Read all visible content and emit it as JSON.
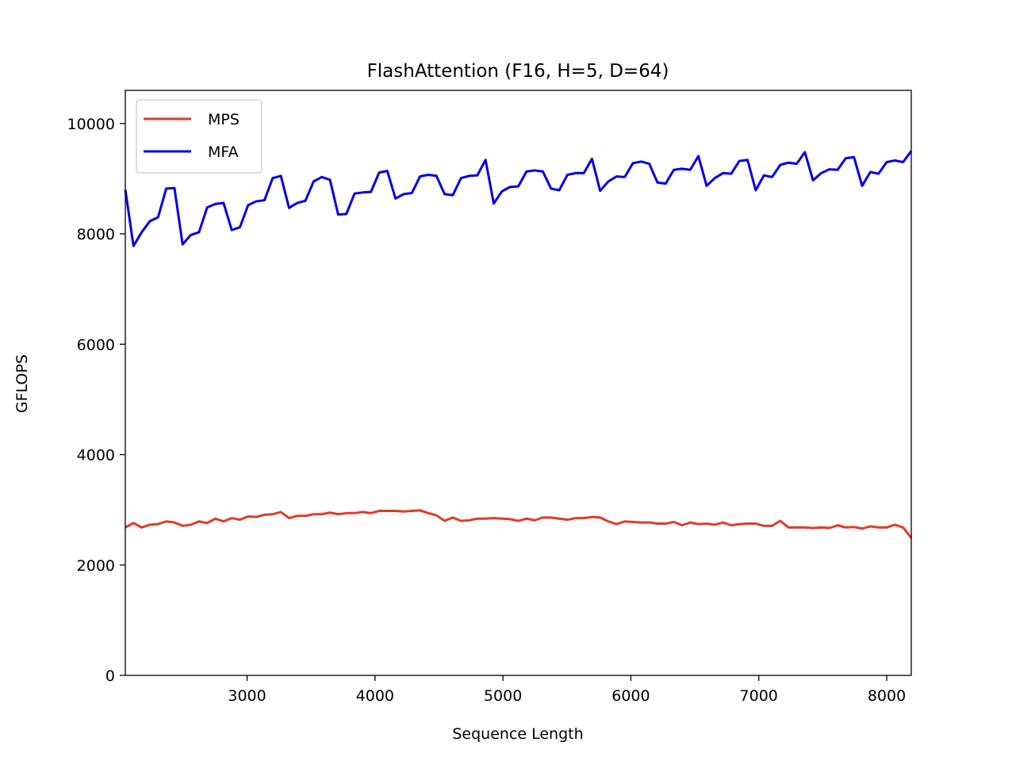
{
  "chart_data": {
    "type": "line",
    "title": "FlashAttention (F16, H=5, D=64)",
    "xlabel": "Sequence Length",
    "ylabel": "GFLOPS",
    "xlim": [
      2048,
      8192
    ],
    "ylim": [
      0,
      10600
    ],
    "x_ticks": [
      3000,
      4000,
      5000,
      6000,
      7000,
      8000
    ],
    "x_tick_labels": [
      "3000",
      "4000",
      "5000",
      "6000",
      "7000",
      "8000"
    ],
    "y_ticks": [
      0,
      2000,
      4000,
      6000,
      8000,
      10000
    ],
    "y_tick_labels": [
      "0",
      "2000",
      "4000",
      "6000",
      "8000",
      "10000"
    ],
    "grid": false,
    "legend_position": "top-left",
    "x": [
      2048,
      2112,
      2176,
      2240,
      2304,
      2368,
      2432,
      2496,
      2560,
      2624,
      2688,
      2752,
      2816,
      2880,
      2944,
      3008,
      3072,
      3136,
      3200,
      3264,
      3328,
      3392,
      3456,
      3520,
      3584,
      3648,
      3712,
      3776,
      3840,
      3904,
      3968,
      4032,
      4096,
      4160,
      4224,
      4288,
      4352,
      4416,
      4480,
      4544,
      4608,
      4672,
      4736,
      4800,
      4864,
      4928,
      4992,
      5056,
      5120,
      5184,
      5248,
      5312,
      5376,
      5440,
      5504,
      5568,
      5632,
      5696,
      5760,
      5824,
      5888,
      5952,
      6016,
      6080,
      6144,
      6208,
      6272,
      6336,
      6400,
      6464,
      6528,
      6592,
      6656,
      6720,
      6784,
      6848,
      6912,
      6976,
      7040,
      7104,
      7168,
      7232,
      7296,
      7360,
      7424,
      7488,
      7552,
      7616,
      7680,
      7744,
      7808,
      7872,
      7936,
      8000,
      8064,
      8128,
      8192
    ],
    "series": [
      {
        "name": "MPS",
        "color": "#e03a2a",
        "values": [
          2680,
          2760,
          2680,
          2730,
          2740,
          2790,
          2770,
          2710,
          2730,
          2790,
          2760,
          2840,
          2790,
          2850,
          2820,
          2880,
          2870,
          2910,
          2920,
          2960,
          2850,
          2890,
          2890,
          2920,
          2920,
          2950,
          2920,
          2940,
          2940,
          2960,
          2940,
          2980,
          2980,
          2980,
          2970,
          2980,
          2990,
          2940,
          2900,
          2800,
          2860,
          2800,
          2810,
          2840,
          2840,
          2850,
          2840,
          2830,
          2800,
          2840,
          2810,
          2860,
          2860,
          2840,
          2820,
          2850,
          2850,
          2870,
          2860,
          2790,
          2740,
          2790,
          2780,
          2770,
          2770,
          2750,
          2750,
          2780,
          2720,
          2770,
          2740,
          2750,
          2730,
          2770,
          2720,
          2740,
          2750,
          2750,
          2710,
          2710,
          2800,
          2680,
          2680,
          2680,
          2670,
          2680,
          2670,
          2720,
          2680,
          2690,
          2660,
          2700,
          2680,
          2680,
          2730,
          2680,
          2490
        ]
      },
      {
        "name": "MFA",
        "color": "#0000e6",
        "values": [
          8800,
          7780,
          8030,
          8230,
          8300,
          8820,
          8830,
          7810,
          7980,
          8030,
          8480,
          8540,
          8560,
          8070,
          8120,
          8520,
          8590,
          8610,
          9010,
          9050,
          8470,
          8560,
          8600,
          8950,
          9030,
          8980,
          8350,
          8360,
          8730,
          8750,
          8760,
          9110,
          9140,
          8640,
          8720,
          8740,
          9040,
          9070,
          9050,
          8720,
          8700,
          9010,
          9050,
          9060,
          9340,
          8550,
          8770,
          8850,
          8860,
          9130,
          9150,
          9130,
          8820,
          8790,
          9070,
          9100,
          9100,
          9360,
          8780,
          8950,
          9040,
          9030,
          9280,
          9310,
          9270,
          8930,
          8910,
          9160,
          9180,
          9160,
          9410,
          8870,
          9010,
          9100,
          9090,
          9320,
          9340,
          8790,
          9060,
          9030,
          9250,
          9290,
          9270,
          9480,
          8970,
          9100,
          9170,
          9160,
          9370,
          9390,
          8870,
          9120,
          9090,
          9300,
          9330,
          9300,
          9500
        ]
      }
    ]
  }
}
